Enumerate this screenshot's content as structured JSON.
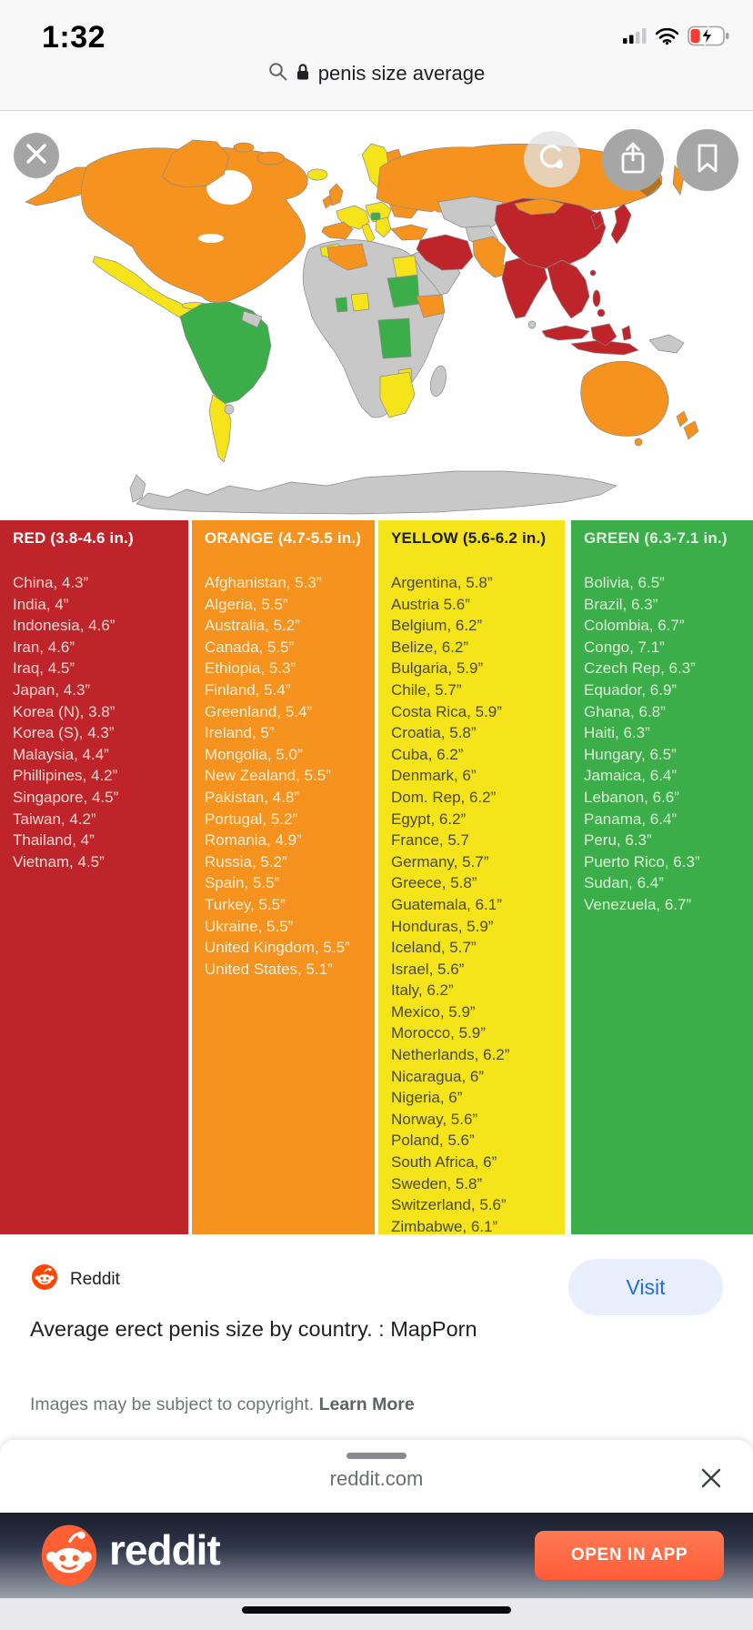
{
  "status_bar": {
    "time": "1:32",
    "icons": [
      "cellular-signal",
      "wifi",
      "battery-charging-low"
    ]
  },
  "search": {
    "query": "penis size average",
    "icons": [
      "search",
      "lock"
    ]
  },
  "viewer": {
    "icons": [
      "close",
      "visual-search-lens",
      "share",
      "bookmark"
    ]
  },
  "colors": {
    "red": "#BE2429",
    "orange": "#F6921E",
    "yellow": "#F5E41A",
    "green": "#3BAE49",
    "no_data_gray": "#C8C8C8",
    "visit_blue": "#1A6FE8",
    "reddit_orange": "#FF4500",
    "cta_orange": "#FF6C47"
  },
  "legend": {
    "columns": [
      {
        "id": "red",
        "header": "RED (3.8-4.6 in.)",
        "entries": [
          "China, 4.3”",
          "India, 4”",
          "Indonesia, 4.6”",
          "Iran, 4.6”",
          "Iraq, 4.5”",
          "Japan, 4.3”",
          "Korea (N), 3.8”",
          "Korea (S), 4.3”",
          "Malaysia, 4.4”",
          "Phillipines, 4.2”",
          "Singapore, 4.5”",
          "Taiwan, 4.2”",
          "Thailand, 4”",
          "Vietnam, 4.5”"
        ]
      },
      {
        "id": "orange",
        "header": "ORANGE (4.7-5.5 in.)",
        "entries": [
          "Afghanistan, 5.3”",
          "Algeria, 5.5”",
          "Australia, 5.2”",
          "Canada, 5.5”",
          "Ethiopia, 5.3”",
          "Finland, 5.4”",
          "Greenland, 5.4”",
          "Ireland, 5”",
          "Mongolia, 5.0”",
          "New Zealand, 5.5”",
          "Pakistan, 4.8”",
          "Portugal, 5.2”",
          "Romania, 4.9”",
          "Russia, 5.2”",
          "Spain, 5.5”",
          "Turkey, 5.5”",
          "Ukraine, 5.5”",
          "United Kingdom, 5.5”",
          "United States, 5.1”"
        ]
      },
      {
        "id": "yellow",
        "header": "YELLOW (5.6-6.2 in.)",
        "entries": [
          "Argentina, 5.8”",
          "Austria 5.6”",
          "Belgium, 6.2”",
          "Belize, 6.2”",
          "Bulgaria, 5.9”",
          "Chile, 5.7”",
          "Costa Rica, 5.9”",
          "Croatia, 5.8”",
          "Cuba, 6.2”",
          "Denmark, 6”",
          "Dom. Rep, 6.2”",
          "Egypt, 6.2”",
          "France, 5.7",
          "Germany, 5.7”",
          "Greece, 5.8”",
          "Guatemala, 6.1”",
          "Honduras, 5.9”",
          "Iceland, 5.7”",
          "Israel, 5.6”",
          "Italy, 6.2”",
          "Mexico, 5.9”",
          "Morocco, 5.9”",
          "Netherlands, 6.2”",
          "Nicaragua, 6”",
          "Nigeria, 6”",
          "Norway, 5.6”",
          "Poland, 5.6”",
          "South Africa, 6”",
          "Sweden, 5.8”",
          "Switzerland, 5.6”",
          "Zimbabwe, 6.1”"
        ]
      },
      {
        "id": "green",
        "header": "GREEN (6.3-7.1 in.)",
        "entries": [
          "Bolivia, 6.5”",
          "Brazil, 6.3”",
          "Colombia, 6.7”",
          "Congo, 7.1”",
          "Czech Rep, 6.3”",
          "Equador, 6.9”",
          "Ghana, 6.8”",
          "Haiti, 6.3”",
          "Hungary, 6.5”",
          "Jamaica, 6.4”",
          "Lebanon, 6.6”",
          "Panama, 6.4”",
          "Peru, 6.3”",
          "Puerto Rico, 6.3”",
          "Sudan, 6.4”",
          "Venezuela, 6.7”"
        ]
      }
    ]
  },
  "result": {
    "source": "Reddit",
    "visit_label": "Visit",
    "title": "Average erect penis size by country. : MapPorn",
    "copyright": "Images may be subject to copyright. ",
    "learn_more": "Learn More"
  },
  "sheet": {
    "domain": "reddit.com"
  },
  "banner": {
    "brand": "reddit",
    "cta": "OPEN IN APP"
  }
}
